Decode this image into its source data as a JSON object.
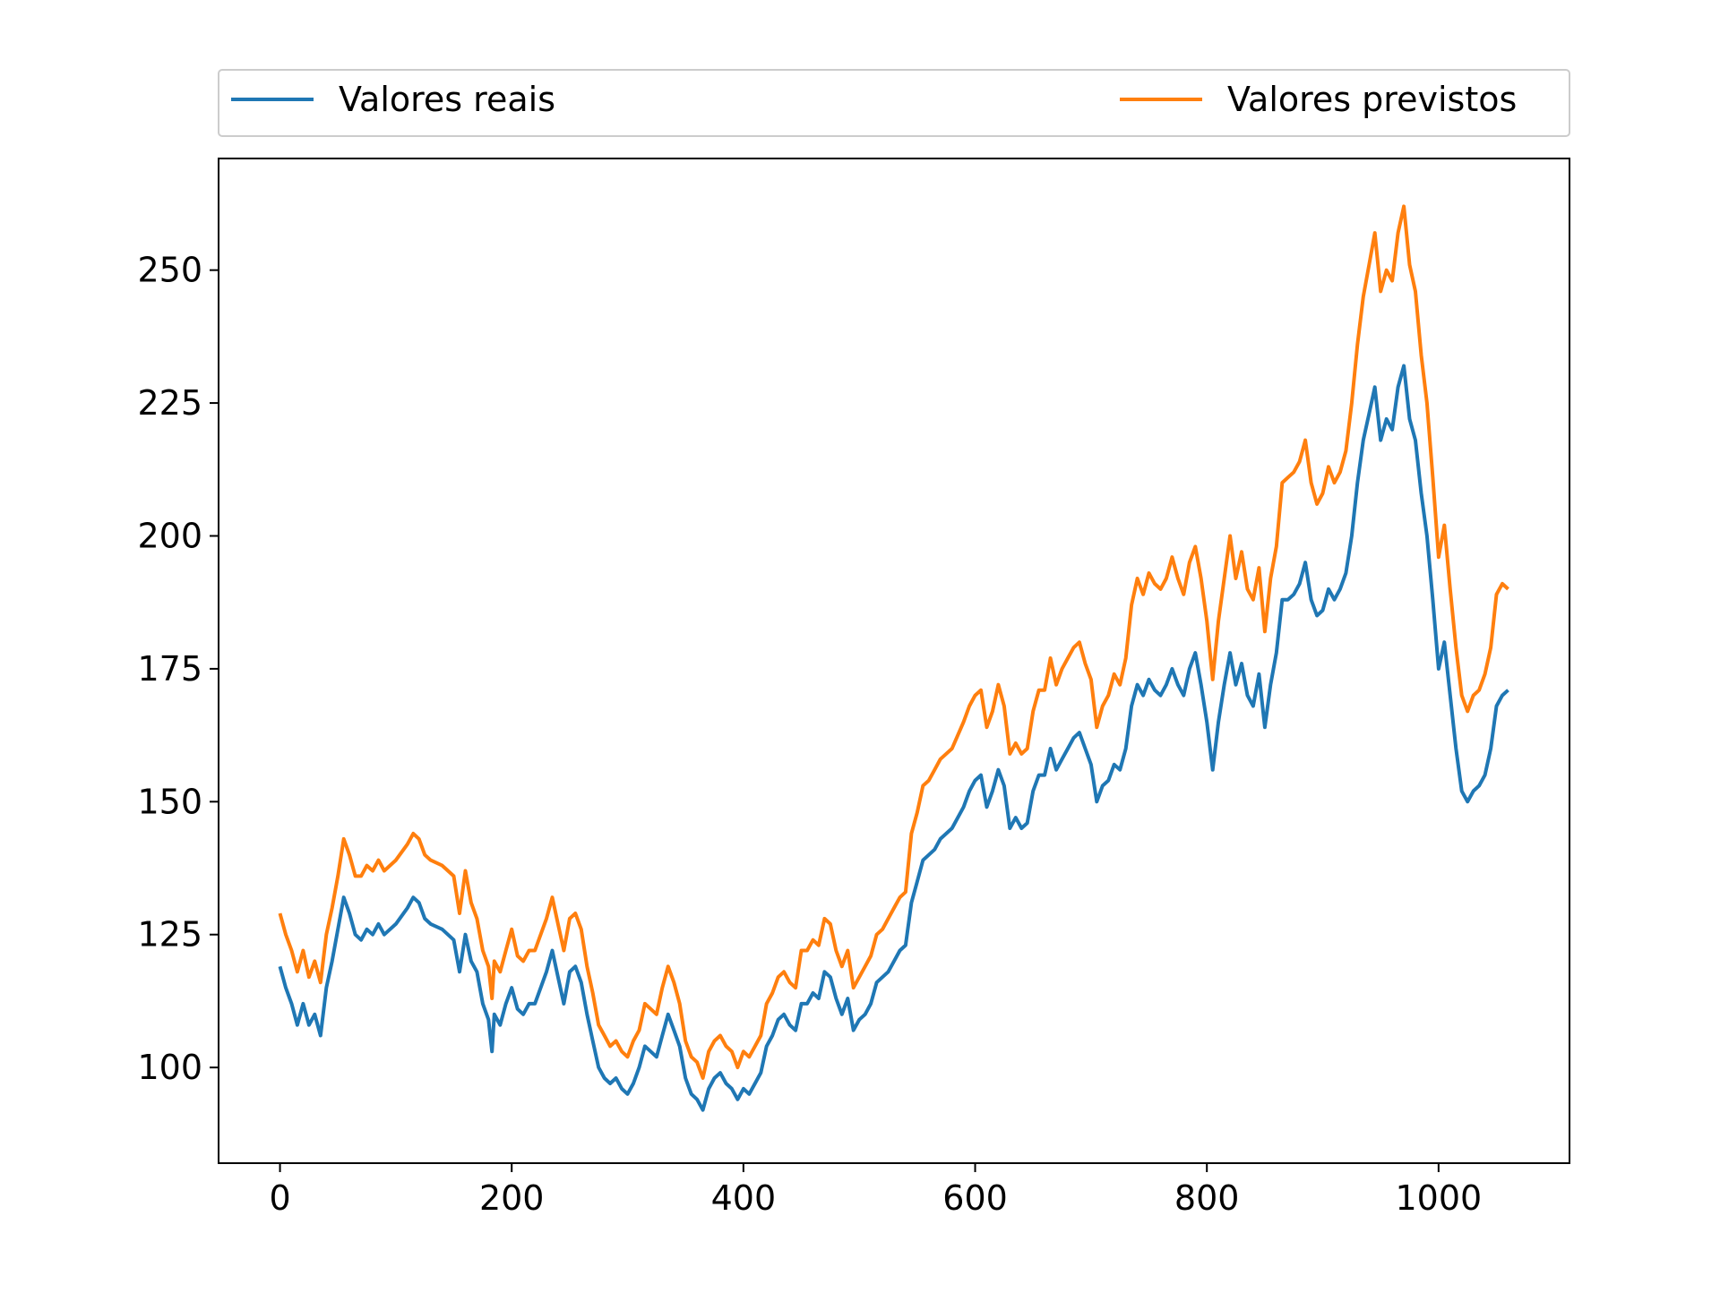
{
  "chart_data": {
    "type": "line",
    "title": "",
    "xlabel": "",
    "ylabel": "",
    "xlim": [
      -53,
      1113
    ],
    "ylim": [
      82,
      271
    ],
    "xticks": [
      0,
      200,
      400,
      600,
      800,
      1000
    ],
    "yticks": [
      100,
      125,
      150,
      175,
      200,
      225,
      250
    ],
    "xtick_labels": [
      "0",
      "200",
      "400",
      "600",
      "800",
      "1000"
    ],
    "ytick_labels": [
      "100",
      "125",
      "150",
      "175",
      "200",
      "225",
      "250"
    ],
    "grid": false,
    "legend": "top-outside, two columns",
    "series": [
      {
        "name": "Valores reais",
        "color": "#1f77b4",
        "x": [
          0,
          5,
          10,
          15,
          20,
          25,
          30,
          35,
          40,
          45,
          50,
          55,
          60,
          65,
          70,
          75,
          80,
          85,
          90,
          100,
          110,
          115,
          120,
          125,
          130,
          140,
          150,
          155,
          160,
          165,
          170,
          175,
          180,
          183,
          185,
          190,
          195,
          200,
          205,
          210,
          215,
          220,
          230,
          235,
          240,
          245,
          250,
          255,
          260,
          265,
          270,
          275,
          280,
          285,
          290,
          295,
          300,
          305,
          310,
          315,
          320,
          325,
          330,
          335,
          340,
          345,
          350,
          355,
          360,
          365,
          370,
          375,
          380,
          385,
          390,
          395,
          400,
          405,
          410,
          415,
          420,
          425,
          430,
          435,
          440,
          445,
          450,
          455,
          460,
          465,
          470,
          475,
          480,
          485,
          490,
          495,
          500,
          505,
          510,
          515,
          520,
          525,
          530,
          535,
          540,
          545,
          550,
          555,
          560,
          565,
          570,
          580,
          590,
          595,
          600,
          605,
          610,
          615,
          620,
          625,
          630,
          635,
          640,
          645,
          650,
          655,
          660,
          665,
          670,
          675,
          680,
          685,
          690,
          695,
          700,
          705,
          710,
          715,
          720,
          725,
          730,
          735,
          740,
          745,
          750,
          755,
          760,
          765,
          770,
          775,
          780,
          785,
          790,
          795,
          800,
          805,
          810,
          815,
          820,
          825,
          830,
          835,
          840,
          845,
          850,
          855,
          860,
          865,
          870,
          875,
          880,
          885,
          890,
          895,
          900,
          905,
          910,
          915,
          920,
          925,
          930,
          935,
          940,
          945,
          950,
          955,
          960,
          965,
          970,
          975,
          980,
          985,
          990,
          995,
          1000,
          1005,
          1010,
          1015,
          1020,
          1025,
          1030,
          1035,
          1040,
          1045,
          1050,
          1055,
          1060
        ],
        "y": [
          119,
          115,
          112,
          108,
          112,
          108,
          110,
          106,
          115,
          120,
          126,
          132,
          129,
          125,
          124,
          126,
          125,
          127,
          125,
          127,
          130,
          132,
          131,
          128,
          127,
          126,
          124,
          118,
          125,
          120,
          118,
          112,
          109,
          103,
          110,
          108,
          112,
          115,
          111,
          110,
          112,
          112,
          118,
          122,
          117,
          112,
          118,
          119,
          116,
          110,
          105,
          100,
          98,
          97,
          98,
          96,
          95,
          97,
          100,
          104,
          103,
          102,
          106,
          110,
          107,
          104,
          98,
          95,
          94,
          92,
          96,
          98,
          99,
          97,
          96,
          94,
          96,
          95,
          97,
          99,
          104,
          106,
          109,
          110,
          108,
          107,
          112,
          112,
          114,
          113,
          118,
          117,
          113,
          110,
          113,
          107,
          109,
          110,
          112,
          116,
          117,
          118,
          120,
          122,
          123,
          131,
          135,
          139,
          140,
          141,
          143,
          145,
          149,
          152,
          154,
          155,
          149,
          152,
          156,
          153,
          145,
          147,
          145,
          146,
          152,
          155,
          155,
          160,
          156,
          158,
          160,
          162,
          163,
          160,
          157,
          150,
          153,
          154,
          157,
          156,
          160,
          168,
          172,
          170,
          173,
          171,
          170,
          172,
          175,
          172,
          170,
          175,
          178,
          172,
          165,
          156,
          165,
          172,
          178,
          172,
          176,
          170,
          168,
          174,
          164,
          172,
          178,
          188,
          188,
          189,
          191,
          195,
          188,
          185,
          186,
          190,
          188,
          190,
          193,
          200,
          210,
          218,
          223,
          228,
          218,
          222,
          220,
          228,
          232,
          222,
          218,
          208,
          200,
          188,
          175,
          180,
          170,
          160,
          152,
          150,
          152,
          153,
          155,
          160,
          168,
          170,
          171
        ]
      },
      {
        "name": "Valores previstos",
        "color": "#ff7f0e",
        "x": [
          0,
          5,
          10,
          15,
          20,
          25,
          30,
          35,
          40,
          45,
          50,
          55,
          60,
          65,
          70,
          75,
          80,
          85,
          90,
          100,
          110,
          115,
          120,
          125,
          130,
          140,
          150,
          155,
          160,
          165,
          170,
          175,
          180,
          183,
          185,
          190,
          195,
          200,
          205,
          210,
          215,
          220,
          230,
          235,
          240,
          245,
          250,
          255,
          260,
          265,
          270,
          275,
          280,
          285,
          290,
          295,
          300,
          305,
          310,
          315,
          320,
          325,
          330,
          335,
          340,
          345,
          350,
          355,
          360,
          365,
          370,
          375,
          380,
          385,
          390,
          395,
          400,
          405,
          410,
          415,
          420,
          425,
          430,
          435,
          440,
          445,
          450,
          455,
          460,
          465,
          470,
          475,
          480,
          485,
          490,
          495,
          500,
          505,
          510,
          515,
          520,
          525,
          530,
          535,
          540,
          545,
          550,
          555,
          560,
          565,
          570,
          580,
          590,
          595,
          600,
          605,
          610,
          615,
          620,
          625,
          630,
          635,
          640,
          645,
          650,
          655,
          660,
          665,
          670,
          675,
          680,
          685,
          690,
          695,
          700,
          705,
          710,
          715,
          720,
          725,
          730,
          735,
          740,
          745,
          750,
          755,
          760,
          765,
          770,
          775,
          780,
          785,
          790,
          795,
          800,
          805,
          810,
          815,
          820,
          825,
          830,
          835,
          840,
          845,
          850,
          855,
          860,
          865,
          870,
          875,
          880,
          885,
          890,
          895,
          900,
          905,
          910,
          915,
          920,
          925,
          930,
          935,
          940,
          945,
          950,
          955,
          960,
          965,
          970,
          975,
          980,
          985,
          990,
          995,
          1000,
          1005,
          1010,
          1015,
          1020,
          1025,
          1030,
          1035,
          1040,
          1045,
          1050,
          1055,
          1060
        ],
        "y": [
          129,
          125,
          122,
          118,
          122,
          117,
          120,
          116,
          125,
          130,
          136,
          143,
          140,
          136,
          136,
          138,
          137,
          139,
          137,
          139,
          142,
          144,
          143,
          140,
          139,
          138,
          136,
          129,
          137,
          131,
          128,
          122,
          119,
          113,
          120,
          118,
          122,
          126,
          121,
          120,
          122,
          122,
          128,
          132,
          127,
          122,
          128,
          129,
          126,
          119,
          114,
          108,
          106,
          104,
          105,
          103,
          102,
          105,
          107,
          112,
          111,
          110,
          115,
          119,
          116,
          112,
          105,
          102,
          101,
          98,
          103,
          105,
          106,
          104,
          103,
          100,
          103,
          102,
          104,
          106,
          112,
          114,
          117,
          118,
          116,
          115,
          122,
          122,
          124,
          123,
          128,
          127,
          122,
          119,
          122,
          115,
          117,
          119,
          121,
          125,
          126,
          128,
          130,
          132,
          133,
          144,
          148,
          153,
          154,
          156,
          158,
          160,
          165,
          168,
          170,
          171,
          164,
          167,
          172,
          168,
          159,
          161,
          159,
          160,
          167,
          171,
          171,
          177,
          172,
          175,
          177,
          179,
          180,
          176,
          173,
          164,
          168,
          170,
          174,
          172,
          177,
          187,
          192,
          189,
          193,
          191,
          190,
          192,
          196,
          192,
          189,
          195,
          198,
          192,
          184,
          173,
          184,
          192,
          200,
          192,
          197,
          190,
          188,
          194,
          182,
          192,
          198,
          210,
          211,
          212,
          214,
          218,
          210,
          206,
          208,
          213,
          210,
          212,
          216,
          225,
          236,
          245,
          251,
          257,
          246,
          250,
          248,
          257,
          262,
          251,
          246,
          234,
          225,
          211,
          196,
          202,
          190,
          179,
          170,
          167,
          170,
          171,
          174,
          179,
          189,
          191,
          190
        ]
      }
    ]
  }
}
